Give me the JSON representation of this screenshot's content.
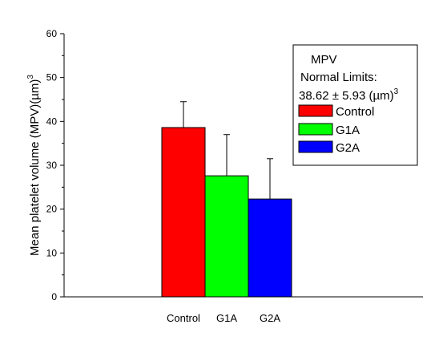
{
  "chart_data": {
    "type": "bar",
    "title": "",
    "xlabel": "",
    "ylabel": "Mean platelet volume (MPV)(µm)",
    "ylabel_superscript": "3",
    "ylim": [
      0,
      60
    ],
    "yticks": [
      "0",
      "10",
      "20",
      "30",
      "40",
      "50",
      "60"
    ],
    "grid": false,
    "categories": [
      "Control",
      "G1A",
      "G2A"
    ],
    "values": [
      38.6,
      27.6,
      22.3
    ],
    "errors": [
      5.9,
      9.4,
      9.2
    ],
    "colors": [
      "#ff0000",
      "#00ff00",
      "#0000ff"
    ],
    "legend": {
      "placement": "top-right",
      "title": "MPV",
      "line2": "Normal Limits:",
      "line3": "38.62 ± 5.93 (µm)",
      "line3_superscript": "3",
      "entries": [
        "Control",
        "G1A",
        "G2A"
      ]
    }
  }
}
